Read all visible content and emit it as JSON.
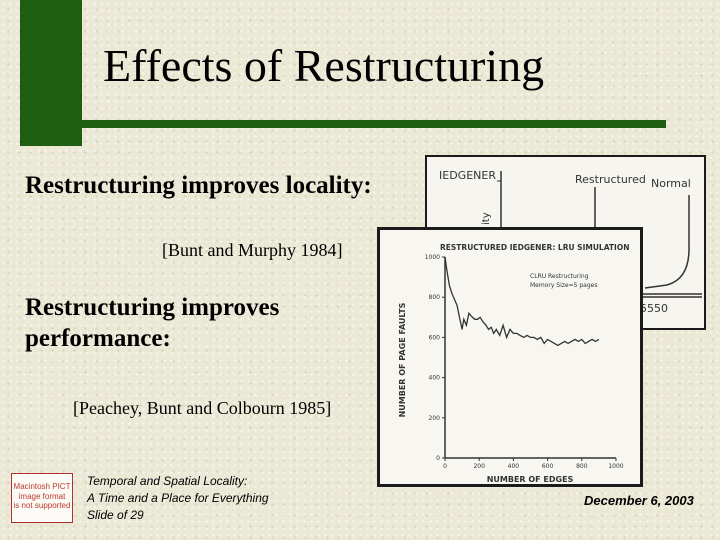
{
  "title": "Effects of Restructuring",
  "bullets": {
    "locality": "Restructuring improves locality:",
    "locality_citation": "[Bunt and Murphy 1984]",
    "performance": "Restructuring improves performance:",
    "performance_citation": "[Peachey, Bunt and Colbourn 1985]"
  },
  "colors": {
    "accent_green": "#1d5e10",
    "background": "#ebe9d6"
  },
  "chart_back": {
    "label_top_left": "IEDGENER",
    "label_restructured": "Restructured",
    "label_normal": "Normal",
    "ylabel_fragment": "ity",
    "xtick_fragment": "5550"
  },
  "chart_data": {
    "type": "line",
    "title": "RESTRUCTURED IEDGENER: LRU SIMULATION",
    "legend": [
      "CLRU Restructuring",
      "Memory Size=5 pages"
    ],
    "xlabel": "NUMBER OF EDGES",
    "ylabel": "NUMBER OF PAGE FAULTS",
    "xlim": [
      0,
      1000
    ],
    "ylim": [
      0,
      1000
    ],
    "x_ticks": [
      "0",
      "200",
      "400",
      "600",
      "800",
      "1000"
    ],
    "y_ticks": [
      "0",
      "200",
      "400",
      "600",
      "800",
      "1000"
    ],
    "series": [
      {
        "x": [
          0,
          10,
          25,
          40,
          55,
          70,
          85,
          100,
          110,
          125,
          140,
          160,
          175,
          190,
          205,
          220,
          240,
          255,
          270,
          285,
          300,
          320,
          340,
          360,
          380,
          400,
          420,
          440,
          460,
          480,
          500,
          520,
          540,
          560,
          580,
          600,
          620,
          640,
          660,
          680,
          700,
          720,
          740,
          760,
          780,
          800,
          820,
          840,
          860,
          880,
          900
        ],
        "y": [
          1000,
          940,
          860,
          820,
          790,
          760,
          700,
          640,
          690,
          660,
          720,
          700,
          690,
          690,
          700,
          680,
          660,
          640,
          650,
          620,
          640,
          610,
          660,
          600,
          640,
          620,
          620,
          610,
          600,
          610,
          600,
          600,
          590,
          600,
          570,
          590,
          580,
          570,
          560,
          570,
          580,
          570,
          580,
          590,
          580,
          590,
          570,
          580,
          590,
          580,
          590
        ]
      }
    ]
  },
  "placeholder": {
    "line1": "Macintosh PICT",
    "line2": "image format",
    "line3": "is not supported"
  },
  "footer": {
    "line1": "Temporal and Spatial Locality:",
    "line2": "A Time and a Place for Everything",
    "line3": "Slide  of 29",
    "date": "December 6, 2003"
  }
}
